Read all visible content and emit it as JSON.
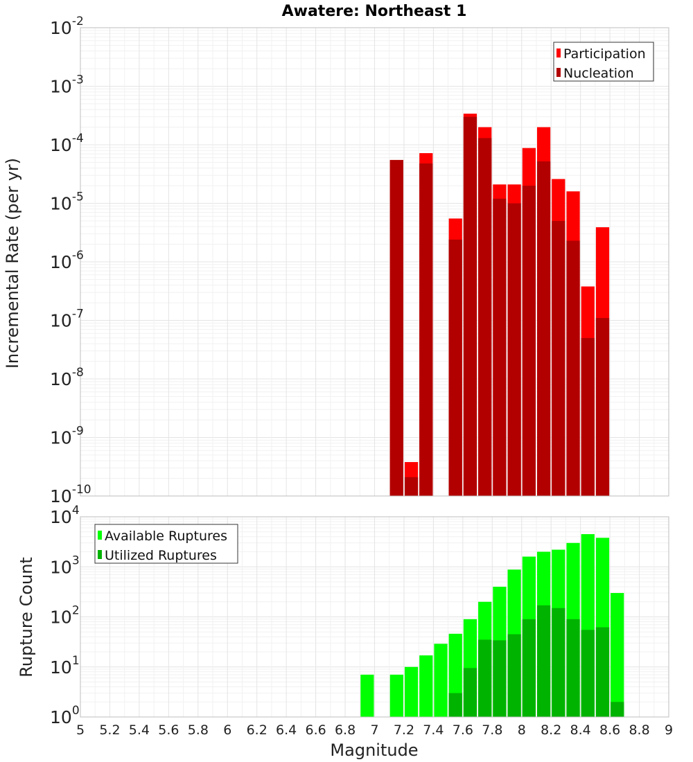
{
  "chart_data": [
    {
      "type": "bar",
      "title": "Awatere: Northeast 1",
      "ylabel": "Incremental Rate (per yr)",
      "xlabel": "",
      "yscale": "log",
      "ylim_exp": [
        -10,
        -2
      ],
      "xlim": [
        5,
        9
      ],
      "legend": "top-right",
      "grid": true,
      "x": [
        7.15,
        7.25,
        7.35,
        7.55,
        7.65,
        7.75,
        7.85,
        7.95,
        8.05,
        8.15,
        8.25,
        8.35,
        8.45,
        8.55
      ],
      "series": [
        {
          "name": "Participation",
          "color": "#ff0000",
          "values": [
            5.5e-05,
            3.8e-10,
            7.2e-05,
            5.5e-06,
            0.00034,
            0.0002,
            2.1e-05,
            2.1e-05,
            8.8e-05,
            0.0002,
            2.6e-05,
            1.6e-05,
            3.8e-07,
            3.9e-06
          ]
        },
        {
          "name": "Nucleation",
          "color": "#b20000",
          "values": [
            5.5e-05,
            2.1e-10,
            4.8e-05,
            2.4e-06,
            0.0003,
            0.00013,
            1.2e-05,
            1e-05,
            2e-05,
            5.2e-05,
            5e-06,
            2.3e-06,
            5e-08,
            1.1e-07
          ]
        }
      ]
    },
    {
      "type": "bar",
      "title": "",
      "ylabel": "Rupture Count",
      "xlabel": "Magnitude",
      "yscale": "log",
      "ylim_exp": [
        0,
        4
      ],
      "xlim": [
        5,
        9
      ],
      "legend": "top-left",
      "grid": true,
      "x": [
        6.95,
        7.15,
        7.25,
        7.35,
        7.45,
        7.55,
        7.65,
        7.75,
        7.85,
        7.95,
        8.05,
        8.15,
        8.25,
        8.35,
        8.45,
        8.55,
        8.65
      ],
      "series": [
        {
          "name": "Available Ruptures",
          "color": "#00ff00",
          "values": [
            7,
            7,
            10,
            17,
            29,
            46,
            90,
            200,
            400,
            880,
            1600,
            2000,
            2200,
            3000,
            4500,
            3800,
            300
          ]
        },
        {
          "name": "Utilized Ruptures",
          "color": "#00b300",
          "values": [
            null,
            1,
            1,
            1,
            null,
            3,
            9.5,
            35,
            34,
            45,
            90,
            170,
            150,
            90,
            55,
            62,
            2
          ]
        }
      ]
    }
  ],
  "x_ticks": [
    "5",
    "5.2",
    "5.4",
    "5.6",
    "5.8",
    "6",
    "6.2",
    "6.4",
    "6.6",
    "6.8",
    "7",
    "7.2",
    "7.4",
    "7.6",
    "7.8",
    "8",
    "8.2",
    "8.4",
    "8.6",
    "8.8",
    "9"
  ],
  "top_y_ticks": [
    {
      "base": "10",
      "exp": "-10"
    },
    {
      "base": "10",
      "exp": "-9"
    },
    {
      "base": "10",
      "exp": "-8"
    },
    {
      "base": "10",
      "exp": "-7"
    },
    {
      "base": "10",
      "exp": "-6"
    },
    {
      "base": "10",
      "exp": "-5"
    },
    {
      "base": "10",
      "exp": "-4"
    },
    {
      "base": "10",
      "exp": "-3"
    },
    {
      "base": "10",
      "exp": "-2"
    }
  ],
  "bottom_y_ticks": [
    {
      "base": "10",
      "exp": "0"
    },
    {
      "base": "10",
      "exp": "1"
    },
    {
      "base": "10",
      "exp": "2"
    },
    {
      "base": "10",
      "exp": "3"
    },
    {
      "base": "10",
      "exp": "4"
    }
  ]
}
